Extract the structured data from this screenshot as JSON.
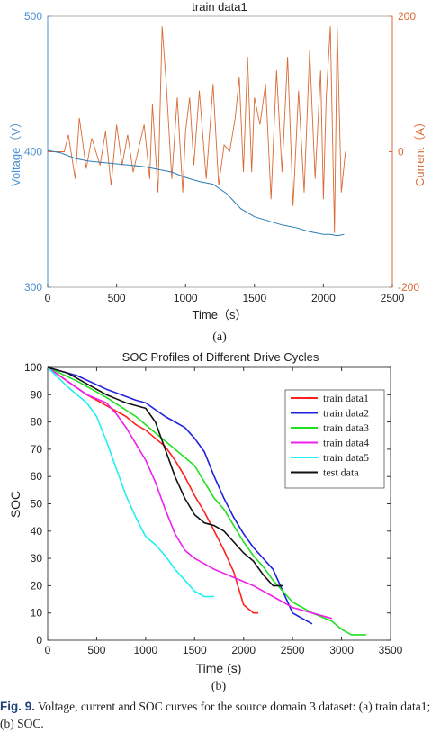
{
  "chart_data": [
    {
      "type": "line",
      "title": "train data1",
      "sublabel": "(a)",
      "xlabel": "Time（s）",
      "ylabel_left": "Voltage（V）",
      "ylabel_right": "Current（A）",
      "xlim": [
        0,
        2500
      ],
      "xticks": [
        "0",
        "500",
        "1000",
        "1500",
        "2000",
        "2500"
      ],
      "ylim_left": [
        300,
        500
      ],
      "yticks_left": [
        "300",
        "400",
        "500"
      ],
      "ylim_right": [
        -200,
        200
      ],
      "yticks_right": [
        "-200",
        "0",
        "200"
      ],
      "grid": false,
      "colors": {
        "voltage": "#2c7bb6",
        "current": "#d96a34"
      },
      "series": [
        {
          "axis": "left",
          "x": [
            0,
            100,
            200,
            300,
            400,
            500,
            600,
            700,
            800,
            900,
            1000,
            1100,
            1200,
            1300,
            1400,
            1500,
            1600,
            1700,
            1800,
            1900,
            2000,
            2050,
            2100,
            2150
          ],
          "values": [
            401,
            399,
            395,
            393,
            392,
            391,
            390,
            389,
            387,
            385,
            381,
            378,
            376,
            369,
            358,
            352,
            349,
            346,
            344,
            341,
            339,
            339,
            338,
            339
          ]
        },
        {
          "axis": "right",
          "x": [
            0,
            120,
            150,
            200,
            230,
            280,
            320,
            380,
            420,
            460,
            500,
            540,
            580,
            620,
            700,
            740,
            760,
            800,
            830,
            860,
            900,
            940,
            980,
            1000,
            1030,
            1060,
            1100,
            1150,
            1200,
            1240,
            1280,
            1320,
            1360,
            1390,
            1420,
            1450,
            1480,
            1500,
            1540,
            1580,
            1620,
            1660,
            1700,
            1740,
            1780,
            1820,
            1860,
            1900,
            1940,
            1980,
            2000,
            2020,
            2050,
            2080,
            2100,
            2130,
            2160
          ],
          "values": [
            0,
            0,
            25,
            -40,
            50,
            -25,
            20,
            -20,
            30,
            -50,
            40,
            -20,
            25,
            -30,
            40,
            -40,
            70,
            -60,
            185,
            100,
            -40,
            80,
            -60,
            30,
            80,
            -20,
            90,
            -40,
            100,
            -50,
            10,
            0,
            50,
            110,
            -30,
            140,
            -30,
            80,
            40,
            100,
            -70,
            120,
            -30,
            140,
            -80,
            90,
            -60,
            150,
            -40,
            120,
            -70,
            80,
            185,
            -120,
            185,
            -60,
            0
          ]
        }
      ]
    },
    {
      "type": "line",
      "title": "SOC Profiles of Different Drive Cycles",
      "sublabel": "(b)",
      "xlabel": "Time (s)",
      "ylabel": "SOC",
      "xlim": [
        0,
        3500
      ],
      "xticks": [
        "0",
        "500",
        "1000",
        "1500",
        "2000",
        "2500",
        "3000",
        "3500"
      ],
      "ylim": [
        0,
        100
      ],
      "yticks": [
        "0",
        "10",
        "20",
        "30",
        "40",
        "50",
        "60",
        "70",
        "80",
        "90",
        "100"
      ],
      "grid": false,
      "legend_position": "top-right",
      "series": [
        {
          "name": "train data1",
          "color": "#ff2020",
          "x": [
            0,
            200,
            400,
            600,
            800,
            900,
            1000,
            1100,
            1200,
            1300,
            1400,
            1500,
            1600,
            1700,
            1800,
            1900,
            2000,
            2100,
            2150
          ],
          "values": [
            100,
            95,
            90,
            86,
            82,
            79,
            77,
            74,
            71,
            66,
            60,
            53,
            47,
            40,
            33,
            25,
            13,
            10,
            10
          ]
        },
        {
          "name": "train data2",
          "color": "#2020e0",
          "x": [
            0,
            300,
            600,
            900,
            1000,
            1200,
            1400,
            1500,
            1600,
            1700,
            1800,
            1900,
            2000,
            2100,
            2200,
            2300,
            2400,
            2500,
            2600,
            2700
          ],
          "values": [
            100,
            97,
            92,
            88,
            87,
            82,
            78,
            74,
            69,
            60,
            52,
            45,
            39,
            34,
            30,
            26,
            18,
            10,
            8,
            6
          ]
        },
        {
          "name": "train data3",
          "color": "#20e020",
          "x": [
            0,
            300,
            600,
            900,
            1100,
            1300,
            1500,
            1600,
            1700,
            1800,
            1900,
            2000,
            2100,
            2200,
            2300,
            2400,
            2500,
            2700,
            2900,
            3000,
            3100,
            3250
          ],
          "values": [
            100,
            95,
            89,
            82,
            76,
            70,
            64,
            58,
            52,
            48,
            42,
            36,
            31,
            27,
            22,
            18,
            14,
            10,
            7,
            4,
            2,
            2
          ]
        },
        {
          "name": "train data4",
          "color": "#ee20ee",
          "x": [
            0,
            200,
            400,
            600,
            700,
            800,
            900,
            1000,
            1100,
            1200,
            1300,
            1400,
            1500,
            1700,
            1900,
            2100,
            2300,
            2500,
            2700,
            2900
          ],
          "values": [
            100,
            95,
            90,
            87,
            83,
            78,
            72,
            66,
            58,
            48,
            39,
            33,
            30,
            26,
            23,
            20,
            16,
            12,
            10,
            8
          ]
        },
        {
          "name": "train data5",
          "color": "#20f0f0",
          "x": [
            0,
            200,
            400,
            500,
            600,
            700,
            800,
            900,
            1000,
            1100,
            1200,
            1300,
            1400,
            1500,
            1600,
            1700
          ],
          "values": [
            100,
            93,
            87,
            82,
            73,
            63,
            53,
            45,
            38,
            35,
            31,
            26,
            22,
            18,
            16,
            16
          ]
        },
        {
          "name": "test data",
          "color": "#111111",
          "x": [
            0,
            200,
            400,
            600,
            800,
            1000,
            1100,
            1200,
            1300,
            1400,
            1500,
            1600,
            1700,
            1800,
            1900,
            2000,
            2100,
            2200,
            2300,
            2400
          ],
          "values": [
            100,
            98,
            94,
            90,
            87,
            85,
            80,
            70,
            60,
            52,
            46,
            43,
            42,
            40,
            36,
            32,
            29,
            24,
            20,
            20
          ]
        }
      ]
    }
  ],
  "caption": {
    "label": "Fig. 9.",
    "text": " Voltage, current and SOC curves for the source domain 3 dataset: (a) train data1; (b) SOC."
  }
}
